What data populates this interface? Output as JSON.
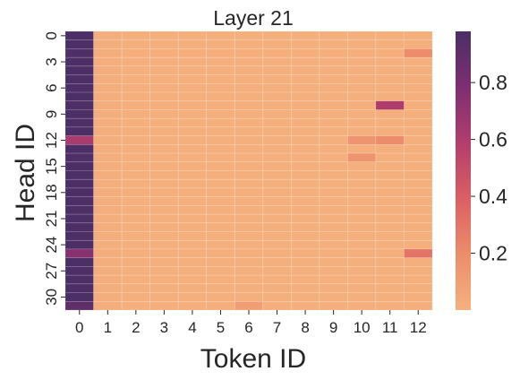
{
  "chart_data": {
    "type": "heatmap",
    "title": "Layer 21",
    "xlabel": "Token ID",
    "ylabel": "Head ID",
    "x_categories": [
      "0",
      "1",
      "2",
      "3",
      "4",
      "5",
      "6",
      "7",
      "8",
      "9",
      "10",
      "11",
      "12"
    ],
    "y_categories": [
      "0",
      "1",
      "2",
      "3",
      "4",
      "5",
      "6",
      "7",
      "8",
      "9",
      "10",
      "11",
      "12",
      "13",
      "14",
      "15",
      "16",
      "17",
      "18",
      "19",
      "20",
      "21",
      "22",
      "23",
      "24",
      "25",
      "26",
      "27",
      "28",
      "29",
      "30",
      "31"
    ],
    "y_tick_labels": [
      "0",
      "3",
      "6",
      "9",
      "12",
      "15",
      "18",
      "21",
      "24",
      "27",
      "30"
    ],
    "colorbar_ticks": [
      "0.2",
      "0.4",
      "0.6",
      "0.8"
    ],
    "colorbar_range": [
      0.0,
      0.98
    ],
    "colormap": [
      "#f5b17e",
      "#ec8d6b",
      "#db5f63",
      "#b23e6c",
      "#7e2e72",
      "#4a2f66"
    ],
    "values": [
      [
        0.97,
        0.02,
        0.01,
        0.01,
        0.01,
        0.01,
        0.01,
        0.01,
        0.01,
        0.01,
        0.01,
        0.01,
        0.01
      ],
      [
        0.97,
        0.02,
        0.01,
        0.01,
        0.01,
        0.01,
        0.01,
        0.01,
        0.01,
        0.01,
        0.01,
        0.01,
        0.01
      ],
      [
        0.96,
        0.02,
        0.01,
        0.01,
        0.01,
        0.01,
        0.01,
        0.01,
        0.01,
        0.01,
        0.01,
        0.01,
        0.2
      ],
      [
        0.97,
        0.02,
        0.01,
        0.01,
        0.01,
        0.01,
        0.01,
        0.01,
        0.01,
        0.01,
        0.01,
        0.01,
        0.01
      ],
      [
        0.97,
        0.02,
        0.01,
        0.01,
        0.01,
        0.01,
        0.01,
        0.01,
        0.01,
        0.01,
        0.01,
        0.01,
        0.01
      ],
      [
        0.97,
        0.02,
        0.01,
        0.01,
        0.01,
        0.01,
        0.01,
        0.01,
        0.01,
        0.01,
        0.01,
        0.01,
        0.01
      ],
      [
        0.97,
        0.02,
        0.01,
        0.01,
        0.01,
        0.01,
        0.01,
        0.01,
        0.01,
        0.01,
        0.01,
        0.01,
        0.01
      ],
      [
        0.97,
        0.02,
        0.01,
        0.01,
        0.01,
        0.01,
        0.01,
        0.01,
        0.01,
        0.01,
        0.01,
        0.01,
        0.01
      ],
      [
        0.96,
        0.02,
        0.01,
        0.01,
        0.01,
        0.01,
        0.01,
        0.01,
        0.01,
        0.01,
        0.01,
        0.6,
        0.01
      ],
      [
        0.97,
        0.02,
        0.01,
        0.01,
        0.01,
        0.01,
        0.01,
        0.01,
        0.01,
        0.01,
        0.01,
        0.01,
        0.01
      ],
      [
        0.97,
        0.02,
        0.01,
        0.01,
        0.01,
        0.01,
        0.01,
        0.01,
        0.01,
        0.01,
        0.01,
        0.01,
        0.01
      ],
      [
        0.97,
        0.02,
        0.01,
        0.01,
        0.01,
        0.01,
        0.01,
        0.01,
        0.01,
        0.01,
        0.01,
        0.01,
        0.01
      ],
      [
        0.62,
        0.02,
        0.01,
        0.01,
        0.01,
        0.01,
        0.01,
        0.01,
        0.01,
        0.01,
        0.15,
        0.2,
        0.01
      ],
      [
        0.97,
        0.02,
        0.01,
        0.01,
        0.01,
        0.01,
        0.01,
        0.01,
        0.01,
        0.01,
        0.01,
        0.01,
        0.01
      ],
      [
        0.96,
        0.02,
        0.01,
        0.01,
        0.01,
        0.01,
        0.01,
        0.01,
        0.01,
        0.01,
        0.15,
        0.01,
        0.01
      ],
      [
        0.97,
        0.02,
        0.01,
        0.01,
        0.01,
        0.01,
        0.01,
        0.01,
        0.01,
        0.01,
        0.01,
        0.01,
        0.01
      ],
      [
        0.97,
        0.02,
        0.01,
        0.01,
        0.01,
        0.01,
        0.01,
        0.01,
        0.01,
        0.01,
        0.01,
        0.01,
        0.01
      ],
      [
        0.97,
        0.02,
        0.01,
        0.01,
        0.01,
        0.01,
        0.01,
        0.01,
        0.01,
        0.01,
        0.01,
        0.01,
        0.01
      ],
      [
        0.97,
        0.02,
        0.01,
        0.01,
        0.01,
        0.01,
        0.01,
        0.01,
        0.01,
        0.01,
        0.01,
        0.01,
        0.01
      ],
      [
        0.97,
        0.02,
        0.01,
        0.01,
        0.01,
        0.01,
        0.01,
        0.01,
        0.01,
        0.01,
        0.01,
        0.01,
        0.01
      ],
      [
        0.97,
        0.02,
        0.01,
        0.01,
        0.01,
        0.01,
        0.01,
        0.01,
        0.01,
        0.01,
        0.01,
        0.01,
        0.01
      ],
      [
        0.97,
        0.02,
        0.01,
        0.01,
        0.01,
        0.01,
        0.01,
        0.01,
        0.01,
        0.01,
        0.01,
        0.01,
        0.01
      ],
      [
        0.97,
        0.02,
        0.01,
        0.01,
        0.01,
        0.01,
        0.01,
        0.01,
        0.01,
        0.01,
        0.01,
        0.01,
        0.01
      ],
      [
        0.97,
        0.02,
        0.01,
        0.01,
        0.01,
        0.01,
        0.01,
        0.01,
        0.01,
        0.01,
        0.01,
        0.01,
        0.01
      ],
      [
        0.97,
        0.02,
        0.01,
        0.01,
        0.01,
        0.01,
        0.01,
        0.01,
        0.01,
        0.01,
        0.01,
        0.01,
        0.01
      ],
      [
        0.75,
        0.02,
        0.01,
        0.01,
        0.01,
        0.01,
        0.01,
        0.01,
        0.01,
        0.01,
        0.01,
        0.01,
        0.3
      ],
      [
        0.97,
        0.02,
        0.01,
        0.01,
        0.01,
        0.01,
        0.01,
        0.01,
        0.01,
        0.01,
        0.01,
        0.01,
        0.01
      ],
      [
        0.97,
        0.02,
        0.01,
        0.01,
        0.01,
        0.01,
        0.01,
        0.01,
        0.01,
        0.01,
        0.01,
        0.01,
        0.01
      ],
      [
        0.97,
        0.02,
        0.01,
        0.01,
        0.01,
        0.01,
        0.01,
        0.01,
        0.01,
        0.01,
        0.01,
        0.01,
        0.01
      ],
      [
        0.97,
        0.02,
        0.01,
        0.01,
        0.01,
        0.01,
        0.01,
        0.01,
        0.01,
        0.01,
        0.01,
        0.01,
        0.01
      ],
      [
        0.97,
        0.02,
        0.01,
        0.01,
        0.01,
        0.01,
        0.01,
        0.01,
        0.01,
        0.01,
        0.01,
        0.01,
        0.01
      ],
      [
        0.9,
        0.02,
        0.01,
        0.01,
        0.01,
        0.01,
        0.1,
        0.01,
        0.01,
        0.01,
        0.01,
        0.01,
        0.01
      ]
    ]
  }
}
